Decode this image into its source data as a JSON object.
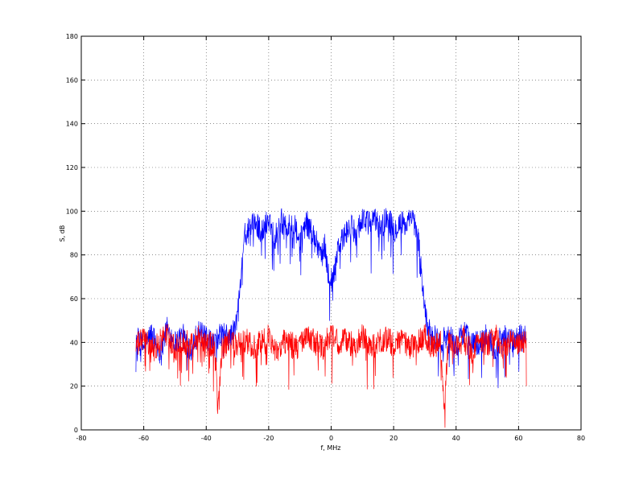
{
  "chart_data": {
    "type": "line",
    "title": "",
    "xlabel": "f, MHz",
    "ylabel": "S, dB",
    "xlim": [
      -80,
      80
    ],
    "ylim": [
      0,
      180
    ],
    "xticks": [
      -80,
      -60,
      -40,
      -20,
      0,
      20,
      40,
      60,
      80
    ],
    "yticks": [
      0,
      20,
      40,
      60,
      80,
      100,
      120,
      140,
      160,
      180
    ],
    "grid": true,
    "series": [
      {
        "color": "#0000ff",
        "x": [
          -62.5,
          -60,
          -57.5,
          -55,
          -52.5,
          -50,
          -47.5,
          -45,
          -42.5,
          -40,
          -37.5,
          -35,
          -32.5,
          -31,
          -30,
          -29,
          -28,
          -26,
          -24,
          -22,
          -20,
          -18,
          -16,
          -14,
          -12,
          -10,
          -8,
          -6,
          -4,
          -3,
          -2,
          -1,
          0,
          1,
          2,
          3,
          4,
          6,
          8,
          10,
          12,
          14,
          16,
          18,
          20,
          22,
          24,
          26,
          28,
          29,
          30,
          31,
          32.5,
          35,
          37.5,
          40,
          42.5,
          45,
          47.5,
          50,
          52.5,
          55,
          57.5,
          60,
          62.5
        ],
        "y": [
          42,
          38,
          44,
          36,
          46,
          40,
          43,
          37,
          45,
          41,
          39,
          44,
          42,
          45,
          52,
          70,
          88,
          92,
          95,
          90,
          97,
          88,
          96,
          92,
          94,
          86,
          95,
          90,
          84,
          80,
          84,
          72,
          68,
          73,
          83,
          86,
          88,
          93,
          90,
          97,
          94,
          96,
          92,
          98,
          91,
          95,
          93,
          97,
          86,
          70,
          55,
          46,
          43,
          40,
          44,
          38,
          45,
          41,
          39,
          43,
          37,
          44,
          40,
          42,
          45
        ]
      },
      {
        "color": "#ff0000",
        "x": [
          -62.5,
          -60,
          -57.5,
          -55,
          -52.5,
          -50,
          -47.5,
          -45,
          -42.5,
          -40,
          -37.5,
          -36,
          -35,
          -32.5,
          -30,
          -27.5,
          -25,
          -22.5,
          -20,
          -17.5,
          -15,
          -12.5,
          -10,
          -7.5,
          -5,
          -2.5,
          0,
          2.5,
          5,
          7.5,
          10,
          12.5,
          15,
          17.5,
          20,
          22.5,
          25,
          27.5,
          30,
          32.5,
          35,
          36,
          37.5,
          40,
          42.5,
          45,
          47.5,
          50,
          52.5,
          55,
          57.5,
          60,
          62.5
        ],
        "y": [
          38,
          42,
          36,
          40,
          44,
          37,
          41,
          39,
          43,
          38,
          40,
          12,
          36,
          41,
          38,
          42,
          37,
          40,
          43,
          36,
          41,
          39,
          38,
          42,
          40,
          37,
          45,
          39,
          41,
          38,
          43,
          37,
          40,
          42,
          39,
          41,
          38,
          40,
          43,
          37,
          41,
          12,
          40,
          38,
          42,
          36,
          41,
          39,
          43,
          37,
          40,
          38,
          41
        ]
      }
    ]
  }
}
